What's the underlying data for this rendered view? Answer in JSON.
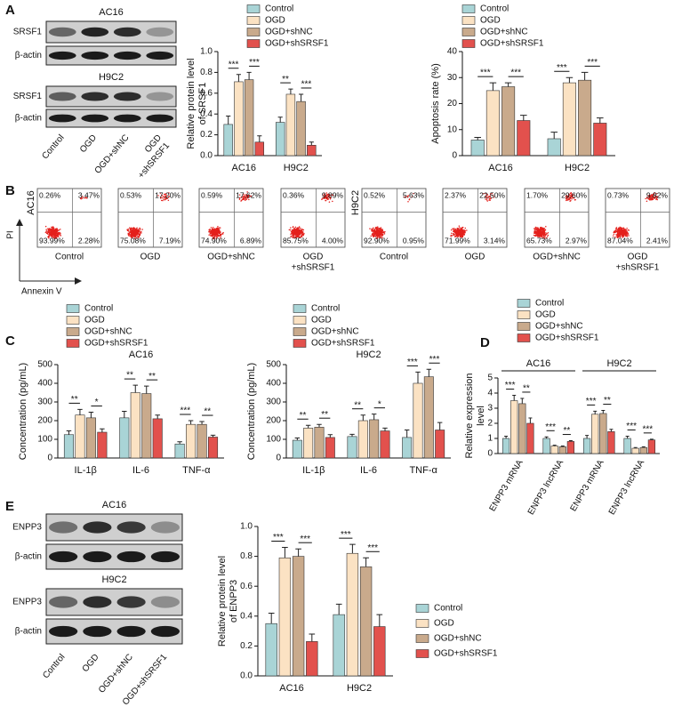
{
  "panel_labels": [
    "A",
    "B",
    "C",
    "D",
    "E"
  ],
  "panel_a_blots": [
    {
      "title": "AC16",
      "rows": [
        "SRSF1",
        "β-actin"
      ]
    },
    {
      "title": "H9C2",
      "rows": [
        "SRSF1",
        "β-actin"
      ]
    }
  ],
  "panel_a_lanes": [
    "Control",
    "OGD",
    "OGD+shNC",
    [
      "OGD",
      "+shSRSF1"
    ]
  ],
  "panel_b": {
    "y_axis_label": "PI",
    "x_axis_label": "Annexin V",
    "cell_lines": [
      {
        "name": "AC16",
        "plots": [
          {
            "label": [
              "Control"
            ],
            "quadrants": [
              "0.26%",
              "3.47%",
              "93.99%",
              "2.28%"
            ]
          },
          {
            "label": [
              "OGD"
            ],
            "quadrants": [
              "0.53%",
              "17.20%",
              "75.08%",
              "7.19%"
            ]
          },
          {
            "label": [
              "OGD+shNC"
            ],
            "quadrants": [
              "0.59%",
              "17.62%",
              "74.90%",
              "6.89%"
            ]
          },
          {
            "label": [
              "OGD",
              "+shSRSF1"
            ],
            "quadrants": [
              "0.36%",
              "9.89%",
              "85.75%",
              "4.00%"
            ]
          }
        ]
      },
      {
        "name": "H9C2",
        "plots": [
          {
            "label": [
              "Control"
            ],
            "quadrants": [
              "0.52%",
              "5.63%",
              "92.90%",
              "0.95%"
            ]
          },
          {
            "label": [
              "OGD"
            ],
            "quadrants": [
              "2.37%",
              "22.50%",
              "71.99%",
              "3.14%"
            ]
          },
          {
            "label": [
              "OGD+shNC"
            ],
            "quadrants": [
              "1.70%",
              "29.60%",
              "65.73%",
              "2.97%"
            ]
          },
          {
            "label": [
              "OGD",
              "+shSRSF1"
            ],
            "quadrants": [
              "0.73%",
              "9.82%",
              "87.04%",
              "2.41%"
            ]
          }
        ]
      }
    ]
  },
  "panel_e_blots": [
    {
      "title": "AC16",
      "rows": [
        "ENPP3",
        "β-actin"
      ]
    },
    {
      "title": "H9C2",
      "rows": [
        "ENPP3",
        "β-actin"
      ]
    }
  ],
  "panel_e_lanes": [
    "Control",
    "OGD",
    "OGD+shNC",
    "OGD+shSRSF1"
  ],
  "chart_data": [
    {
      "type": "bar",
      "ylabel": [
        "Relative protein level",
        "of SRSF1"
      ],
      "categories": [
        "AC16",
        "H9C2"
      ],
      "series": [
        {
          "name": "Control",
          "color": "#a9d4d6",
          "values": [
            0.3,
            0.32
          ],
          "errors": [
            0.08,
            0.05
          ]
        },
        {
          "name": "OGD",
          "color": "#fbe2c3",
          "values": [
            0.71,
            0.59
          ],
          "errors": [
            0.07,
            0.05
          ]
        },
        {
          "name": "OGD+shNC",
          "color": "#c9aa8c",
          "values": [
            0.73,
            0.52
          ],
          "errors": [
            0.07,
            0.07
          ]
        },
        {
          "name": "OGD+shSRSF1",
          "color": "#e2514d",
          "values": [
            0.13,
            0.1
          ],
          "errors": [
            0.06,
            0.03
          ]
        }
      ],
      "ylim": [
        0,
        1
      ],
      "yticks": [
        {
          "value": 0,
          "label": "0.0"
        },
        0.2,
        0.4,
        0.6,
        0.8,
        {
          "value": 1,
          "label": "1.0"
        }
      ],
      "significance": [
        [
          "***",
          "***"
        ],
        [
          "**",
          "***"
        ]
      ]
    },
    {
      "type": "bar",
      "ylabel": [
        "Apoptosis rate (%)"
      ],
      "categories": [
        "AC16",
        "H9C2"
      ],
      "series": [
        {
          "name": "Control",
          "color": "#a9d4d6",
          "values": [
            6,
            6.5
          ],
          "errors": [
            1,
            2.5
          ]
        },
        {
          "name": "OGD",
          "color": "#fbe2c3",
          "values": [
            25,
            28
          ],
          "errors": [
            3,
            2
          ]
        },
        {
          "name": "OGD+shNC",
          "color": "#c9aa8c",
          "values": [
            26.5,
            29
          ],
          "errors": [
            1.5,
            3
          ]
        },
        {
          "name": "OGD+shSRSF1",
          "color": "#e2514d",
          "values": [
            13.5,
            12.5
          ],
          "errors": [
            2,
            2
          ]
        }
      ],
      "ylim": [
        0,
        40
      ],
      "yticks": [
        0,
        10,
        20,
        30,
        40
      ],
      "significance": [
        [
          "***",
          "***"
        ],
        [
          "***",
          "***"
        ]
      ]
    },
    {
      "type": "bar",
      "title": "AC16",
      "ylabel": [
        "Concentration (pg/mL)"
      ],
      "categories": [
        "IL-1β",
        "IL-6",
        "TNF-α"
      ],
      "series": [
        {
          "name": "Control",
          "color": "#a9d4d6",
          "values": [
            125,
            215,
            75
          ],
          "errors": [
            20,
            35,
            12
          ]
        },
        {
          "name": "OGD",
          "color": "#fbe2c3",
          "values": [
            230,
            350,
            180
          ],
          "errors": [
            30,
            40,
            20
          ]
        },
        {
          "name": "OGD+shNC",
          "color": "#c9aa8c",
          "values": [
            215,
            345,
            180
          ],
          "errors": [
            30,
            40,
            15
          ]
        },
        {
          "name": "OGD+shSRSF1",
          "color": "#e2514d",
          "values": [
            138,
            210,
            112
          ],
          "errors": [
            18,
            20,
            10
          ]
        }
      ],
      "ylim": [
        0,
        500
      ],
      "yticks": [
        0,
        100,
        200,
        300,
        400,
        500
      ],
      "significance": [
        [
          "**",
          "*"
        ],
        [
          "**",
          "**"
        ],
        [
          "***",
          "**"
        ]
      ]
    },
    {
      "type": "bar",
      "title": "H9C2",
      "ylabel": [
        "Concentration (pg/mL)"
      ],
      "categories": [
        "IL-1β",
        "IL-6",
        "TNF-α"
      ],
      "series": [
        {
          "name": "Control",
          "color": "#a9d4d6",
          "values": [
            95,
            115,
            110
          ],
          "errors": [
            12,
            12,
            40
          ]
        },
        {
          "name": "OGD",
          "color": "#fbe2c3",
          "values": [
            160,
            200,
            400
          ],
          "errors": [
            15,
            30,
            60
          ]
        },
        {
          "name": "OGD+shNC",
          "color": "#c9aa8c",
          "values": [
            165,
            205,
            435
          ],
          "errors": [
            15,
            30,
            40
          ]
        },
        {
          "name": "OGD+shSRSF1",
          "color": "#e2514d",
          "values": [
            110,
            145,
            150
          ],
          "errors": [
            15,
            15,
            40
          ]
        }
      ],
      "ylim": [
        0,
        500
      ],
      "yticks": [
        0,
        100,
        200,
        300,
        400,
        500
      ],
      "significance": [
        [
          "**",
          "**"
        ],
        [
          "**",
          "*"
        ],
        [
          "***",
          "***"
        ]
      ]
    },
    {
      "type": "bar",
      "ylabel": [
        "Relative expression",
        "level"
      ],
      "group_labels": [
        "AC16",
        "H9C2"
      ],
      "categories": [
        "ENPP3 mRNA",
        "ENPP3 lncRNA",
        "ENPP3 mRNA",
        "ENPP3 lncRNA"
      ],
      "series": [
        {
          "name": "Control",
          "color": "#a9d4d6",
          "values": [
            1.0,
            1.0,
            1.0,
            1.0
          ],
          "errors": [
            0.15,
            0.1,
            0.2,
            0.15
          ]
        },
        {
          "name": "OGD",
          "color": "#fbe2c3",
          "values": [
            3.5,
            0.5,
            2.6,
            0.35
          ],
          "errors": [
            0.35,
            0.05,
            0.2,
            0.05
          ]
        },
        {
          "name": "OGD+shNC",
          "color": "#c9aa8c",
          "values": [
            3.3,
            0.45,
            2.65,
            0.4
          ],
          "errors": [
            0.35,
            0.05,
            0.2,
            0.05
          ]
        },
        {
          "name": "OGD+shSRSF1",
          "color": "#e2514d",
          "values": [
            2.0,
            0.8,
            1.45,
            0.9
          ],
          "errors": [
            0.35,
            0.05,
            0.15,
            0.05
          ]
        }
      ],
      "ylim": [
        0,
        5
      ],
      "yticks": [
        0,
        1,
        2,
        3,
        4,
        5
      ],
      "significance": [
        [
          "***",
          "**"
        ],
        [
          "***",
          "**"
        ],
        [
          "***",
          "**"
        ],
        [
          "***",
          "***"
        ]
      ]
    },
    {
      "type": "bar",
      "ylabel": [
        "Relative protein level",
        "of ENPP3"
      ],
      "categories": [
        "AC16",
        "H9C2"
      ],
      "series": [
        {
          "name": "Control",
          "color": "#a9d4d6",
          "values": [
            0.35,
            0.41
          ],
          "errors": [
            0.07,
            0.07
          ]
        },
        {
          "name": "OGD",
          "color": "#fbe2c3",
          "values": [
            0.79,
            0.82
          ],
          "errors": [
            0.07,
            0.06
          ]
        },
        {
          "name": "OGD+shNC",
          "color": "#c9aa8c",
          "values": [
            0.8,
            0.73
          ],
          "errors": [
            0.05,
            0.06
          ]
        },
        {
          "name": "OGD+shSRSF1",
          "color": "#e2514d",
          "values": [
            0.23,
            0.33
          ],
          "errors": [
            0.05,
            0.08
          ]
        }
      ],
      "ylim": [
        0,
        1
      ],
      "yticks": [
        {
          "value": 0,
          "label": "0.0"
        },
        0.2,
        0.4,
        0.6,
        0.8,
        {
          "value": 1,
          "label": "1.0"
        }
      ],
      "significance": [
        [
          "***",
          "***"
        ],
        [
          "***",
          "***"
        ]
      ]
    }
  ]
}
